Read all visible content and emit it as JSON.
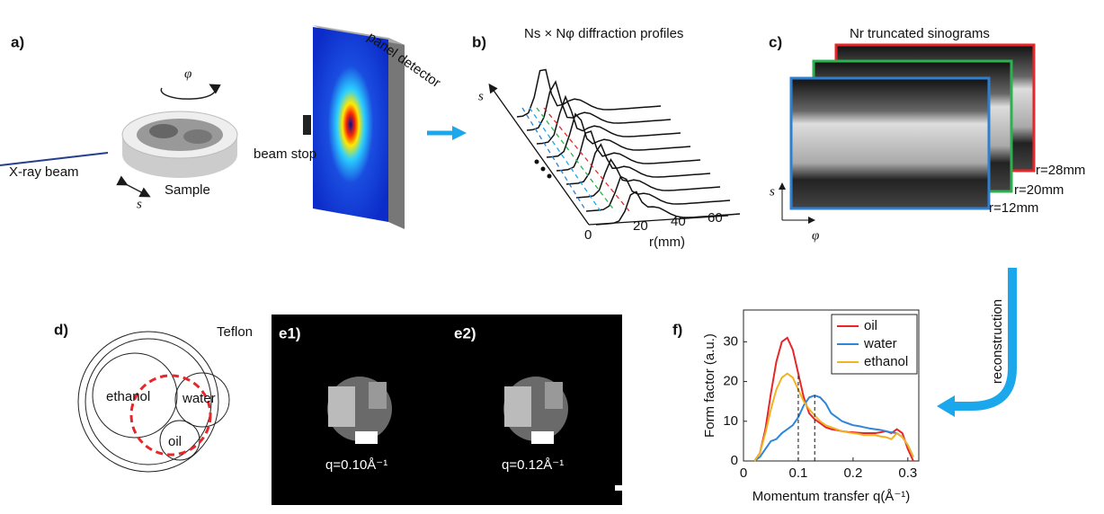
{
  "panel_a": {
    "label": "a)",
    "rotation": "φ",
    "beam": "X-ray beam",
    "axis": "s",
    "sample": "Sample",
    "detector": "panel detector",
    "beam_stop": "beam stop"
  },
  "panel_b": {
    "label": "b)",
    "title": "Ns × Nφ diffraction profiles",
    "axis": "s",
    "ticks": [
      "0",
      "20",
      "40",
      "60"
    ],
    "xlabel": "r(mm)"
  },
  "panel_c": {
    "label": "c)",
    "title": "Nr truncated sinograms",
    "sinograms": [
      "r=28mm",
      "r=20mm",
      "r=12mm"
    ],
    "yaxis": "s",
    "xaxis": "φ"
  },
  "arrow": {
    "label": "reconstruction"
  },
  "panel_d": {
    "label": "d)",
    "outer": "Teflon",
    "regions": [
      "ethanol",
      "water",
      "oil"
    ]
  },
  "panel_e": {
    "labels": [
      "e1)",
      "e2)"
    ],
    "captions": [
      "q=0.10Å⁻¹",
      "q=0.12Å⁻¹"
    ]
  },
  "panel_f": {
    "label": "f)"
  },
  "chart_data": {
    "type": "line",
    "xlabel": "Momentum transfer q(Å⁻¹)",
    "ylabel": "Form factor (a.u.)",
    "x": [
      0.02,
      0.03,
      0.04,
      0.05,
      0.06,
      0.07,
      0.08,
      0.09,
      0.1,
      0.11,
      0.12,
      0.13,
      0.14,
      0.15,
      0.16,
      0.17,
      0.18,
      0.19,
      0.2,
      0.21,
      0.22,
      0.23,
      0.24,
      0.25,
      0.26,
      0.27,
      0.28,
      0.29,
      0.3,
      0.31
    ],
    "series": [
      {
        "name": "oil",
        "color": "#e8262a",
        "values": [
          0,
          2,
          8,
          17,
          25,
          30,
          31,
          28,
          22,
          16,
          12,
          10.5,
          9.5,
          8.5,
          8,
          7.8,
          7.5,
          7.3,
          7.2,
          7.1,
          7,
          7,
          7,
          7.2,
          7.5,
          7,
          8,
          7,
          3,
          0
        ]
      },
      {
        "name": "water",
        "color": "#2f86d8",
        "values": [
          0,
          1,
          3,
          5,
          5.5,
          7,
          8,
          9,
          11,
          14,
          16,
          16.5,
          16,
          14.5,
          12,
          11,
          10,
          9.5,
          9,
          8.8,
          8.5,
          8.2,
          8,
          7.8,
          7.5,
          7.2,
          7,
          6,
          4,
          1
        ]
      },
      {
        "name": "ethanol",
        "color": "#f0b323",
        "values": [
          0,
          2,
          7,
          13,
          18,
          21,
          22,
          21,
          18,
          15,
          13,
          11.5,
          10,
          9,
          8.5,
          8,
          7.5,
          7.2,
          7,
          6.8,
          6.5,
          6.5,
          6.5,
          6.2,
          6,
          5.5,
          7,
          6,
          4,
          1
        ]
      }
    ],
    "markers": [
      {
        "x": 0.1,
        "y": 22
      },
      {
        "x": 0.13,
        "y": 16.5
      }
    ],
    "xlim": [
      0,
      0.32
    ],
    "ylim": [
      0,
      38
    ],
    "xticks": [
      0,
      0.1,
      0.2,
      0.3
    ],
    "yticks": [
      0,
      10,
      20,
      30
    ],
    "legend": "upper right"
  }
}
